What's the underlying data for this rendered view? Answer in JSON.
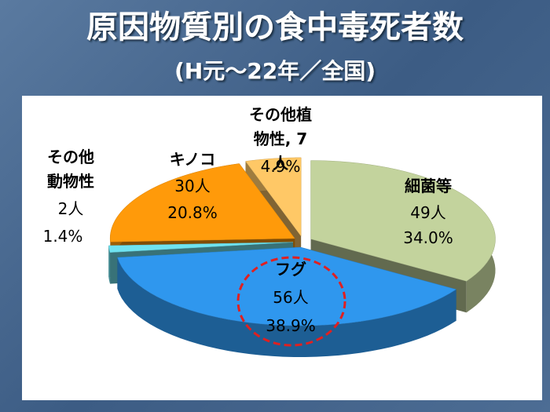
{
  "chart_data": {
    "type": "pie3d",
    "title": "原因物質別の食中毒死者数",
    "subtitle": "(H元～22年／全国)",
    "categories": [
      "細菌等",
      "フグ",
      "その他動物性",
      "キノコ",
      "その他植物性, 7人"
    ],
    "values": [
      49,
      56,
      2,
      30,
      7
    ],
    "value_labels": [
      "49人",
      "56人",
      "2人",
      "30人",
      null
    ],
    "percentages": [
      {
        "value": 34.0,
        "label": "34.0%"
      },
      {
        "value": 38.9,
        "label": "38.9%"
      },
      {
        "value": 1.4,
        "label": "1.4%"
      },
      {
        "value": 20.8,
        "label": "20.8%"
      },
      {
        "value": 4.9,
        "label": "4.9%"
      }
    ],
    "colors": [
      "#c3d39d",
      "#2f97ee",
      "#6fe3f0",
      "#ff9a0a",
      "#ffc866"
    ]
  }
}
